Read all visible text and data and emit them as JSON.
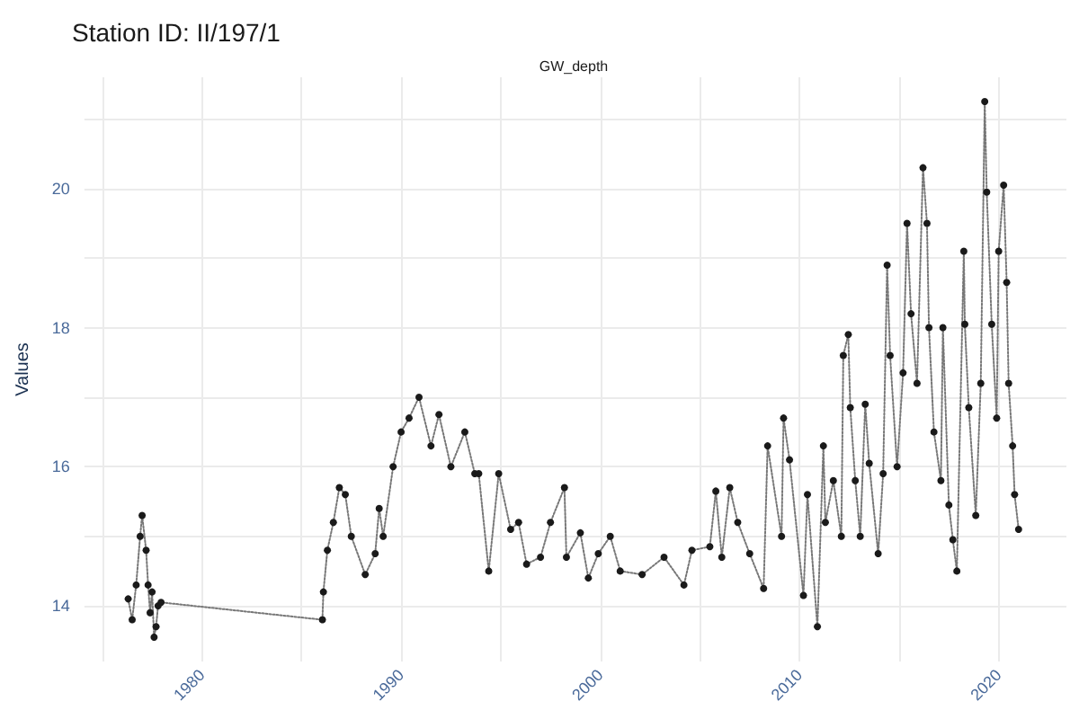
{
  "chart_data": {
    "type": "line",
    "title": "Station ID: II/197/1",
    "subtitle": "GW_depth",
    "ylabel": "Values",
    "marker": "circle",
    "line_style": "dotted",
    "grid": true,
    "xlim": [
      1974.1,
      2023.4
    ],
    "ylim": [
      13.2,
      21.6
    ],
    "xticks": [
      {
        "value": 1975,
        "label": null
      },
      1980,
      {
        "value": 1985,
        "label": null
      },
      1990,
      {
        "value": 1995,
        "label": null
      },
      2000,
      {
        "value": 2005,
        "label": null
      },
      2010,
      {
        "value": 2015,
        "label": null
      },
      2020
    ],
    "yticks": [
      14,
      {
        "value": 15,
        "label": null
      },
      16,
      {
        "value": 17,
        "label": null
      },
      18,
      {
        "value": 19,
        "label": null
      },
      20,
      {
        "value": 21,
        "label": null
      }
    ],
    "series": [
      {
        "color": "#1a1a1a",
        "x": [
          1976.3,
          1976.5,
          1976.7,
          1976.9,
          1977.0,
          1977.2,
          1977.3,
          1977.4,
          1977.5,
          1977.6,
          1977.7,
          1977.8,
          1977.95,
          1986.05,
          1986.1,
          1986.3,
          1986.6,
          1986.9,
          1987.2,
          1987.5,
          1988.2,
          1988.7,
          1988.9,
          1989.1,
          1989.6,
          1990.0,
          1990.4,
          1990.9,
          1991.5,
          1991.9,
          1992.5,
          1993.2,
          1993.7,
          1993.9,
          1994.4,
          1994.9,
          1995.5,
          1995.9,
          1996.3,
          1997.0,
          1997.5,
          1998.2,
          1998.3,
          1999.0,
          1999.4,
          1999.9,
          2000.5,
          2001.0,
          2002.1,
          2003.2,
          2004.2,
          2004.6,
          2005.5,
          2005.8,
          2006.1,
          2006.5,
          2006.9,
          2007.5,
          2008.2,
          2008.4,
          2009.1,
          2009.2,
          2009.5,
          2010.2,
          2010.4,
          2010.9,
          2011.2,
          2011.3,
          2011.7,
          2012.1,
          2012.2,
          2012.45,
          2012.55,
          2012.8,
          2013.05,
          2013.3,
          2013.5,
          2013.95,
          2014.2,
          2014.4,
          2014.55,
          2014.9,
          2015.2,
          2015.4,
          2015.6,
          2015.9,
          2016.2,
          2016.4,
          2016.5,
          2016.75,
          2017.1,
          2017.2,
          2017.5,
          2017.7,
          2017.9,
          2018.25,
          2018.3,
          2018.5,
          2018.85,
          2019.1,
          2019.3,
          2019.4,
          2019.65,
          2019.9,
          2020.0,
          2020.25,
          2020.4,
          2020.5,
          2020.7,
          2020.8,
          2021.0
        ],
        "values": [
          14.1,
          13.8,
          14.3,
          15.0,
          15.3,
          14.8,
          14.3,
          13.9,
          14.2,
          13.55,
          13.7,
          14.0,
          14.05,
          13.8,
          14.2,
          14.8,
          15.2,
          15.7,
          15.6,
          15.0,
          14.45,
          14.75,
          15.4,
          15.0,
          16.0,
          16.5,
          16.7,
          17.0,
          16.3,
          16.75,
          16.0,
          16.5,
          15.9,
          15.9,
          14.5,
          15.9,
          15.1,
          15.2,
          14.6,
          14.7,
          15.2,
          15.7,
          14.7,
          15.05,
          14.4,
          14.75,
          15.0,
          14.5,
          14.45,
          14.7,
          14.3,
          14.8,
          14.85,
          15.65,
          14.7,
          15.7,
          15.2,
          14.75,
          14.25,
          16.3,
          15.0,
          16.7,
          16.1,
          14.15,
          15.6,
          13.7,
          16.3,
          15.2,
          15.8,
          15.0,
          17.6,
          17.9,
          16.85,
          15.8,
          15.0,
          16.9,
          16.05,
          14.75,
          15.9,
          18.9,
          17.6,
          16.0,
          17.35,
          19.5,
          18.2,
          17.2,
          20.3,
          19.5,
          18.0,
          16.5,
          15.8,
          18.0,
          15.45,
          14.95,
          14.5,
          19.1,
          18.05,
          16.85,
          15.3,
          17.2,
          21.25,
          19.95,
          18.05,
          16.7,
          19.1,
          20.05,
          18.65,
          17.2,
          16.3,
          15.6,
          15.1
        ]
      }
    ]
  }
}
